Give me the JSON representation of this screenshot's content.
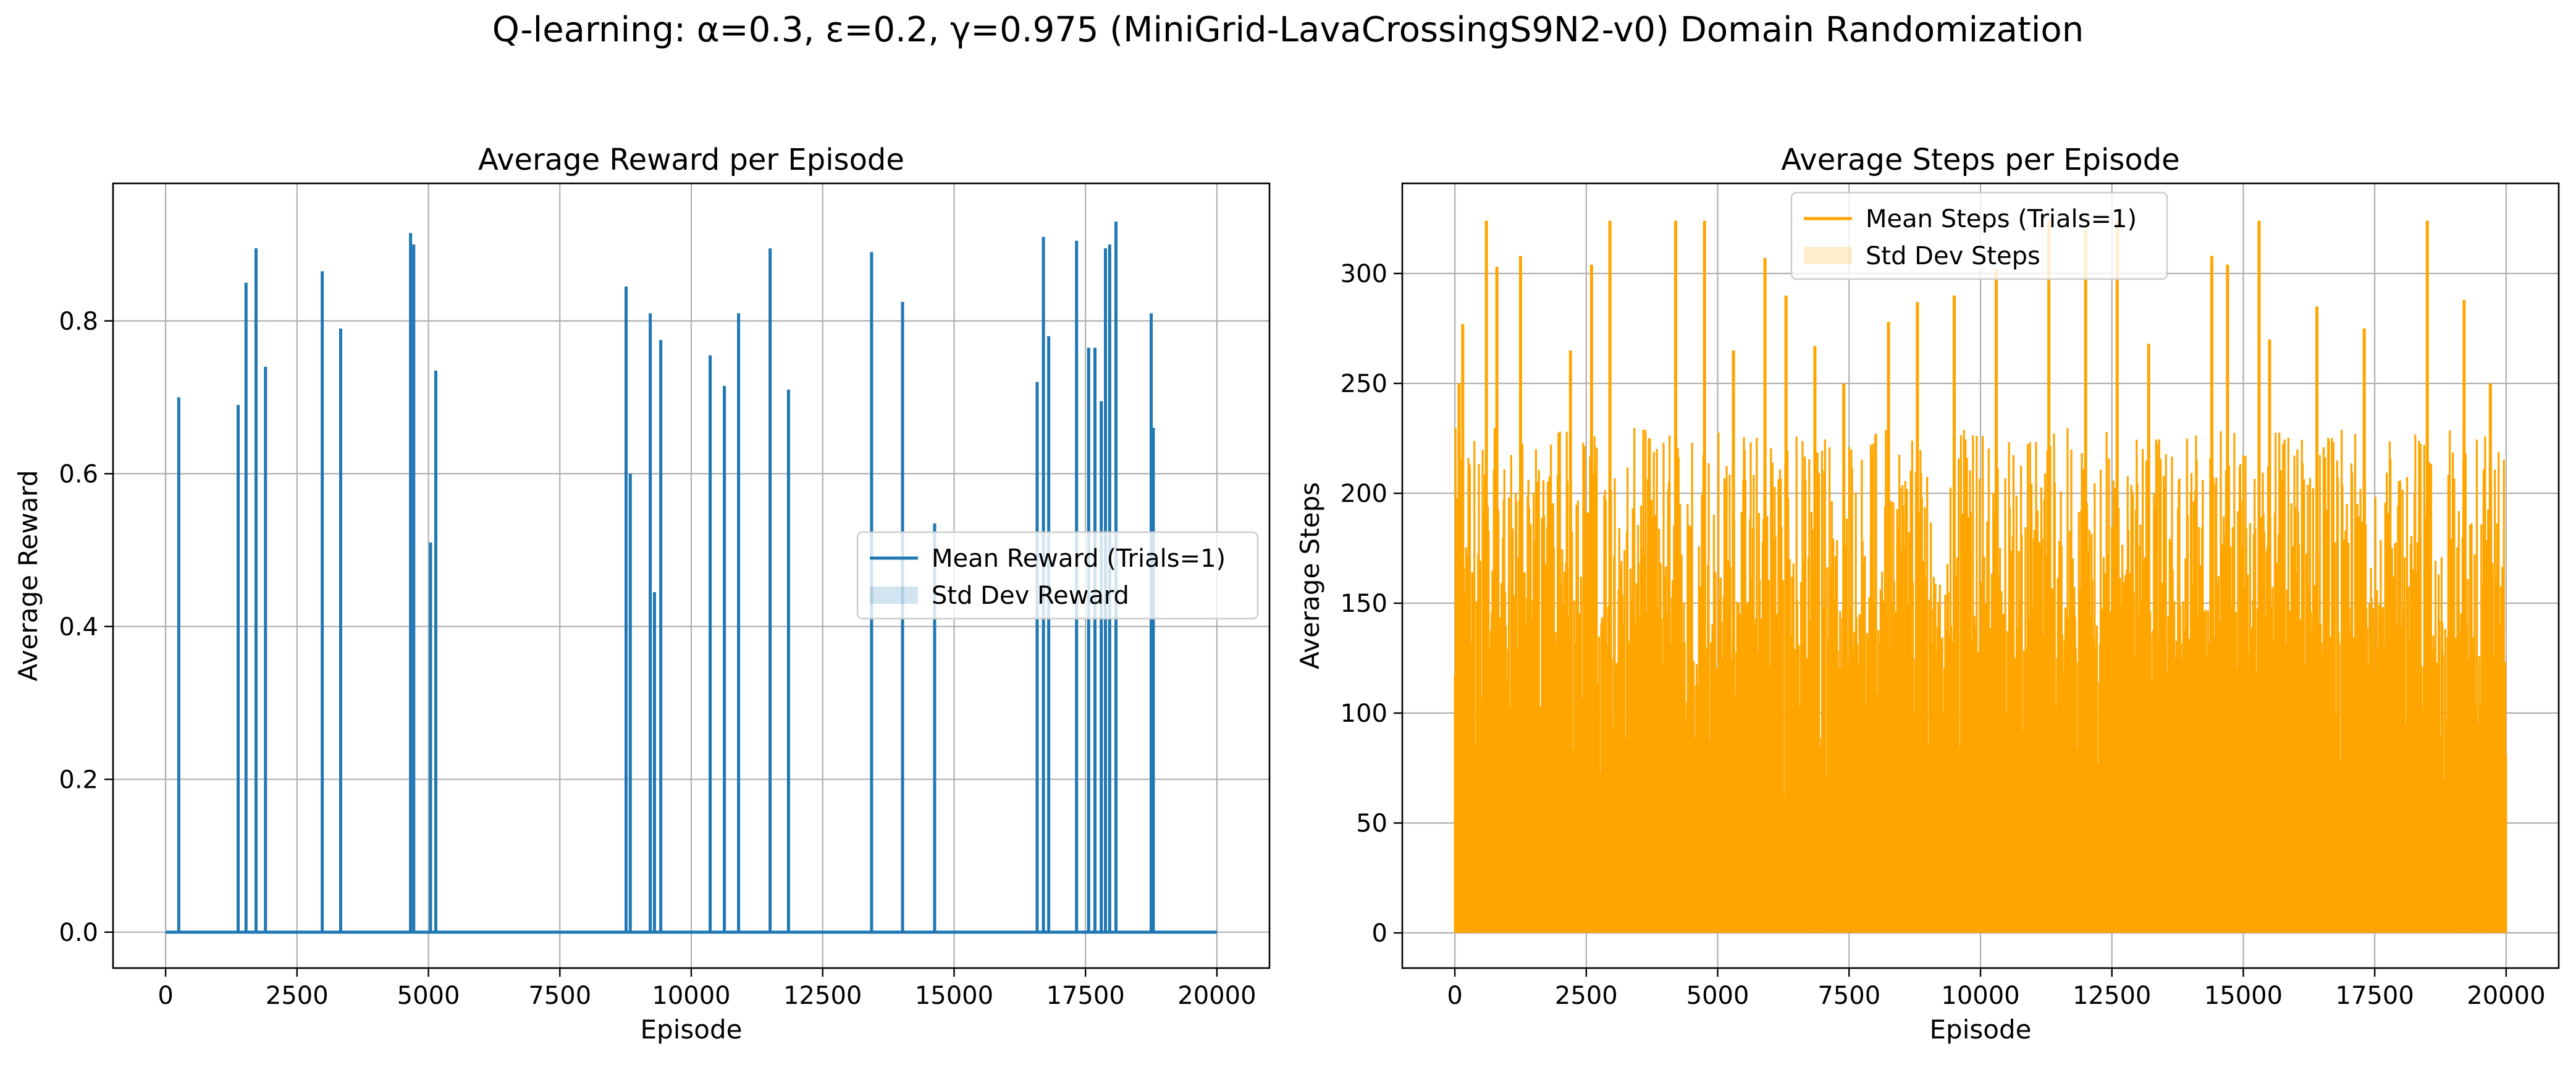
{
  "suptitle": "Q-learning: α=0.3, ε=0.2, γ=0.975 (MiniGrid-LavaCrossingS9N2-v0) Domain Randomization",
  "chart_data": [
    {
      "type": "line",
      "title": "Average Reward per Episode",
      "xlabel": "Episode",
      "ylabel": "Average Reward",
      "xlim": [
        -1000,
        21000
      ],
      "ylim": [
        -0.047,
        0.98
      ],
      "xticks": [
        0,
        2500,
        5000,
        7500,
        10000,
        12500,
        15000,
        17500,
        20000
      ],
      "xtick_labels": [
        "0",
        "2500",
        "5000",
        "7500",
        "10000",
        "12500",
        "15000",
        "17500",
        "20000"
      ],
      "yticks": [
        0.0,
        0.2,
        0.4,
        0.6,
        0.8
      ],
      "ytick_labels": [
        "0.0",
        "0.2",
        "0.4",
        "0.6",
        "0.8"
      ],
      "grid": true,
      "legend_position": "center-right",
      "legend": [
        {
          "label": "Mean Reward (Trials=1)",
          "kind": "line",
          "color": "#1f77b4"
        },
        {
          "label": "Std Dev Reward",
          "kind": "patch",
          "color": "#1f77b4"
        }
      ],
      "series": [
        {
          "name": "Mean Reward (Trials=1)",
          "color": "#1f77b4",
          "baseline": 0.0,
          "x_range": [
            0,
            20000
          ],
          "spikes": [
            {
              "x": 250,
              "y": 0.7
            },
            {
              "x": 1380,
              "y": 0.69
            },
            {
              "x": 1530,
              "y": 0.85
            },
            {
              "x": 1720,
              "y": 0.895
            },
            {
              "x": 1900,
              "y": 0.74
            },
            {
              "x": 2980,
              "y": 0.865
            },
            {
              "x": 3330,
              "y": 0.79
            },
            {
              "x": 4660,
              "y": 0.915
            },
            {
              "x": 4720,
              "y": 0.9
            },
            {
              "x": 5040,
              "y": 0.51
            },
            {
              "x": 5140,
              "y": 0.735
            },
            {
              "x": 8760,
              "y": 0.845
            },
            {
              "x": 8840,
              "y": 0.6
            },
            {
              "x": 9220,
              "y": 0.81
            },
            {
              "x": 9300,
              "y": 0.445
            },
            {
              "x": 9420,
              "y": 0.775
            },
            {
              "x": 10360,
              "y": 0.755
            },
            {
              "x": 10630,
              "y": 0.715
            },
            {
              "x": 10900,
              "y": 0.81
            },
            {
              "x": 11500,
              "y": 0.895
            },
            {
              "x": 11850,
              "y": 0.71
            },
            {
              "x": 13430,
              "y": 0.89
            },
            {
              "x": 14020,
              "y": 0.825
            },
            {
              "x": 14630,
              "y": 0.535
            },
            {
              "x": 16580,
              "y": 0.72
            },
            {
              "x": 16700,
              "y": 0.91
            },
            {
              "x": 16800,
              "y": 0.78
            },
            {
              "x": 17330,
              "y": 0.905
            },
            {
              "x": 17560,
              "y": 0.765
            },
            {
              "x": 17680,
              "y": 0.765
            },
            {
              "x": 17800,
              "y": 0.695
            },
            {
              "x": 17880,
              "y": 0.895
            },
            {
              "x": 17960,
              "y": 0.9
            },
            {
              "x": 18080,
              "y": 0.93
            },
            {
              "x": 18750,
              "y": 0.81
            },
            {
              "x": 18790,
              "y": 0.66
            }
          ]
        }
      ]
    },
    {
      "type": "line",
      "title": "Average Steps per Episode",
      "xlabel": "Episode",
      "ylabel": "Average Steps",
      "xlim": [
        -1000,
        21000
      ],
      "ylim": [
        -16,
        341
      ],
      "xticks": [
        0,
        2500,
        5000,
        7500,
        10000,
        12500,
        15000,
        17500,
        20000
      ],
      "xtick_labels": [
        "0",
        "2500",
        "5000",
        "7500",
        "10000",
        "12500",
        "15000",
        "17500",
        "20000"
      ],
      "yticks": [
        0,
        50,
        100,
        150,
        200,
        250,
        300
      ],
      "ytick_labels": [
        "0",
        "50",
        "100",
        "150",
        "200",
        "250",
        "300"
      ],
      "grid": true,
      "legend_position": "upper-center",
      "legend": [
        {
          "label": "Mean Steps (Trials=1)",
          "kind": "line",
          "color": "#ffa500"
        },
        {
          "label": "Std Dev Steps",
          "kind": "patch",
          "color": "#ffa500"
        }
      ],
      "series": [
        {
          "name": "Mean Steps (Trials=1)",
          "color": "#ffa500",
          "x_range": [
            0,
            20000
          ],
          "typical_peak_range": [
            120,
            230
          ],
          "spikes": [
            {
              "x": 80,
              "y": 250
            },
            {
              "x": 150,
              "y": 277
            },
            {
              "x": 600,
              "y": 324
            },
            {
              "x": 800,
              "y": 303
            },
            {
              "x": 1250,
              "y": 308
            },
            {
              "x": 2200,
              "y": 265
            },
            {
              "x": 2600,
              "y": 304
            },
            {
              "x": 2950,
              "y": 324
            },
            {
              "x": 3700,
              "y": 225
            },
            {
              "x": 4200,
              "y": 324
            },
            {
              "x": 4750,
              "y": 324
            },
            {
              "x": 5300,
              "y": 265
            },
            {
              "x": 5900,
              "y": 307
            },
            {
              "x": 6300,
              "y": 290
            },
            {
              "x": 6850,
              "y": 267
            },
            {
              "x": 7400,
              "y": 250
            },
            {
              "x": 8250,
              "y": 278
            },
            {
              "x": 8800,
              "y": 287
            },
            {
              "x": 9500,
              "y": 290
            },
            {
              "x": 10300,
              "y": 302
            },
            {
              "x": 11300,
              "y": 324
            },
            {
              "x": 12000,
              "y": 320
            },
            {
              "x": 12600,
              "y": 324
            },
            {
              "x": 13200,
              "y": 268
            },
            {
              "x": 14400,
              "y": 308
            },
            {
              "x": 14700,
              "y": 304
            },
            {
              "x": 15300,
              "y": 324
            },
            {
              "x": 15500,
              "y": 270
            },
            {
              "x": 16400,
              "y": 285
            },
            {
              "x": 17300,
              "y": 275
            },
            {
              "x": 18500,
              "y": 324
            },
            {
              "x": 19200,
              "y": 288
            },
            {
              "x": 19700,
              "y": 250
            }
          ]
        }
      ]
    }
  ]
}
